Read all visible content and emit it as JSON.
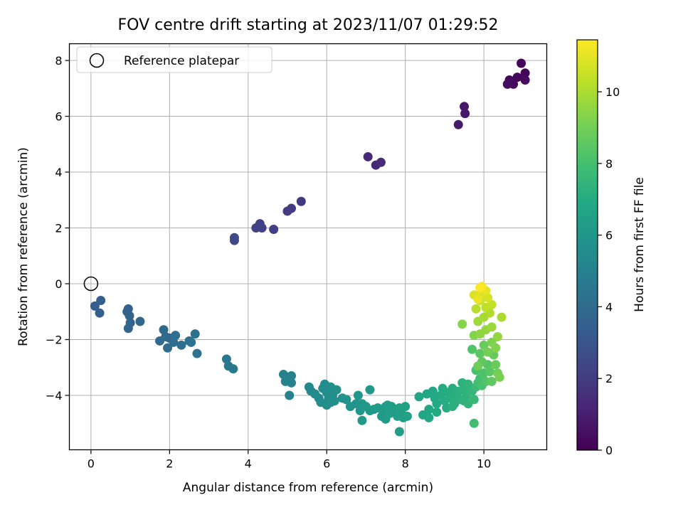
{
  "chart_data": {
    "type": "scatter",
    "title": "FOV centre drift starting at 2023/11/07 01:29:52",
    "xlabel": "Angular distance from reference (arcmin)",
    "ylabel": "Rotation from reference (arcmin)",
    "xlim": [
      -0.55,
      11.6
    ],
    "ylim": [
      -5.95,
      8.6
    ],
    "xticks": [
      0,
      2,
      4,
      6,
      8,
      10
    ],
    "yticks": [
      -4,
      -2,
      0,
      2,
      4,
      6,
      8
    ],
    "grid": true,
    "legend": {
      "placement": "upper-left",
      "entries": [
        "Reference platepar"
      ]
    },
    "reference_point": {
      "x": 0,
      "y": 0
    },
    "colorbar": {
      "label": "Hours from first FF file",
      "colormap": "viridis",
      "range": [
        0,
        11.45
      ],
      "ticks": [
        0,
        2,
        4,
        6,
        8,
        10
      ]
    },
    "points": [
      {
        "x": 10.95,
        "y": 7.9,
        "c": 0.1
      },
      {
        "x": 11.05,
        "y": 7.55,
        "c": 0.15
      },
      {
        "x": 10.85,
        "y": 7.4,
        "c": 0.2
      },
      {
        "x": 10.65,
        "y": 7.3,
        "c": 0.25
      },
      {
        "x": 10.75,
        "y": 7.15,
        "c": 0.3
      },
      {
        "x": 11.05,
        "y": 7.3,
        "c": 0.35
      },
      {
        "x": 10.6,
        "y": 7.15,
        "c": 0.4
      },
      {
        "x": 9.5,
        "y": 6.35,
        "c": 0.7
      },
      {
        "x": 9.52,
        "y": 6.1,
        "c": 0.75
      },
      {
        "x": 9.35,
        "y": 5.7,
        "c": 0.8
      },
      {
        "x": 7.05,
        "y": 4.55,
        "c": 1.25
      },
      {
        "x": 7.25,
        "y": 4.25,
        "c": 1.3
      },
      {
        "x": 7.38,
        "y": 4.35,
        "c": 1.35
      },
      {
        "x": 5.35,
        "y": 2.95,
        "c": 1.9
      },
      {
        "x": 5.1,
        "y": 2.7,
        "c": 1.95
      },
      {
        "x": 5.0,
        "y": 2.6,
        "c": 2.0
      },
      {
        "x": 4.65,
        "y": 1.95,
        "c": 2.1
      },
      {
        "x": 4.3,
        "y": 2.15,
        "c": 2.15
      },
      {
        "x": 4.2,
        "y": 2.0,
        "c": 2.2
      },
      {
        "x": 4.35,
        "y": 2.0,
        "c": 2.25
      },
      {
        "x": 3.65,
        "y": 1.65,
        "c": 2.45
      },
      {
        "x": 3.65,
        "y": 1.55,
        "c": 2.5
      },
      {
        "x": 0.1,
        "y": -0.8,
        "c": 3.4
      },
      {
        "x": 0.25,
        "y": -0.6,
        "c": 3.45
      },
      {
        "x": 0.22,
        "y": -1.05,
        "c": 3.5
      },
      {
        "x": 0.95,
        "y": -0.9,
        "c": 3.6
      },
      {
        "x": 0.92,
        "y": -1.0,
        "c": 3.62
      },
      {
        "x": 0.98,
        "y": -1.15,
        "c": 3.65
      },
      {
        "x": 1.0,
        "y": -1.4,
        "c": 3.7
      },
      {
        "x": 0.95,
        "y": -1.6,
        "c": 3.75
      },
      {
        "x": 1.25,
        "y": -1.35,
        "c": 3.8
      },
      {
        "x": 1.85,
        "y": -1.65,
        "c": 3.9
      },
      {
        "x": 1.75,
        "y": -2.05,
        "c": 3.95
      },
      {
        "x": 1.9,
        "y": -1.9,
        "c": 4.0
      },
      {
        "x": 2.0,
        "y": -1.95,
        "c": 4.0
      },
      {
        "x": 1.95,
        "y": -2.3,
        "c": 4.05
      },
      {
        "x": 2.15,
        "y": -1.85,
        "c": 4.1
      },
      {
        "x": 2.1,
        "y": -2.1,
        "c": 4.1
      },
      {
        "x": 2.3,
        "y": -2.2,
        "c": 4.15
      },
      {
        "x": 2.5,
        "y": -2.05,
        "c": 4.2
      },
      {
        "x": 2.65,
        "y": -1.8,
        "c": 4.25
      },
      {
        "x": 2.7,
        "y": -2.5,
        "c": 4.3
      },
      {
        "x": 2.55,
        "y": -2.1,
        "c": 4.3
      },
      {
        "x": 3.45,
        "y": -2.7,
        "c": 4.5
      },
      {
        "x": 3.5,
        "y": -2.95,
        "c": 4.55
      },
      {
        "x": 3.62,
        "y": -3.05,
        "c": 4.6
      },
      {
        "x": 4.9,
        "y": -3.25,
        "c": 4.95
      },
      {
        "x": 5.0,
        "y": -3.35,
        "c": 5.0
      },
      {
        "x": 5.1,
        "y": -3.3,
        "c": 5.0
      },
      {
        "x": 4.95,
        "y": -3.5,
        "c": 5.05
      },
      {
        "x": 5.1,
        "y": -3.55,
        "c": 5.05
      },
      {
        "x": 5.05,
        "y": -4.0,
        "c": 5.1
      },
      {
        "x": 5.55,
        "y": -3.7,
        "c": 5.3
      },
      {
        "x": 5.6,
        "y": -3.85,
        "c": 5.35
      },
      {
        "x": 5.7,
        "y": -3.95,
        "c": 5.4
      },
      {
        "x": 5.8,
        "y": -4.1,
        "c": 5.45
      },
      {
        "x": 5.85,
        "y": -4.25,
        "c": 5.5
      },
      {
        "x": 5.9,
        "y": -3.75,
        "c": 5.5
      },
      {
        "x": 5.95,
        "y": -3.6,
        "c": 5.55
      },
      {
        "x": 6.0,
        "y": -3.9,
        "c": 5.55
      },
      {
        "x": 6.05,
        "y": -4.1,
        "c": 5.6
      },
      {
        "x": 6.0,
        "y": -4.35,
        "c": 5.6
      },
      {
        "x": 6.1,
        "y": -3.7,
        "c": 5.65
      },
      {
        "x": 6.15,
        "y": -4.0,
        "c": 5.65
      },
      {
        "x": 6.2,
        "y": -4.2,
        "c": 5.7
      },
      {
        "x": 6.25,
        "y": -3.8,
        "c": 5.7
      },
      {
        "x": 6.1,
        "y": -4.25,
        "c": 5.7
      },
      {
        "x": 6.4,
        "y": -4.1,
        "c": 5.8
      },
      {
        "x": 6.5,
        "y": -4.15,
        "c": 5.85
      },
      {
        "x": 6.6,
        "y": -4.4,
        "c": 5.9
      },
      {
        "x": 6.75,
        "y": -4.3,
        "c": 5.9
      },
      {
        "x": 6.8,
        "y": -4.0,
        "c": 5.95
      },
      {
        "x": 6.85,
        "y": -4.55,
        "c": 6.0
      },
      {
        "x": 6.9,
        "y": -4.3,
        "c": 6.0
      },
      {
        "x": 7.0,
        "y": -4.4,
        "c": 6.05
      },
      {
        "x": 7.1,
        "y": -3.8,
        "c": 6.05
      },
      {
        "x": 7.1,
        "y": -4.55,
        "c": 6.1
      },
      {
        "x": 7.2,
        "y": -4.5,
        "c": 6.1
      },
      {
        "x": 6.9,
        "y": -4.9,
        "c": 6.15
      },
      {
        "x": 7.3,
        "y": -4.45,
        "c": 6.15
      },
      {
        "x": 7.45,
        "y": -4.6,
        "c": 6.2
      },
      {
        "x": 7.5,
        "y": -4.4,
        "c": 6.2
      },
      {
        "x": 7.55,
        "y": -4.5,
        "c": 6.25
      },
      {
        "x": 7.5,
        "y": -4.85,
        "c": 6.25
      },
      {
        "x": 7.6,
        "y": -4.65,
        "c": 6.3
      },
      {
        "x": 7.65,
        "y": -4.4,
        "c": 6.3
      },
      {
        "x": 7.75,
        "y": -4.55,
        "c": 6.35
      },
      {
        "x": 7.8,
        "y": -4.75,
        "c": 6.35
      },
      {
        "x": 7.85,
        "y": -4.45,
        "c": 6.4
      },
      {
        "x": 7.9,
        "y": -4.6,
        "c": 6.4
      },
      {
        "x": 7.95,
        "y": -4.8,
        "c": 6.45
      },
      {
        "x": 7.85,
        "y": -5.3,
        "c": 6.45
      },
      {
        "x": 8.0,
        "y": -4.4,
        "c": 6.5
      },
      {
        "x": 8.05,
        "y": -4.75,
        "c": 6.5
      },
      {
        "x": 7.55,
        "y": -4.35,
        "c": 6.3
      },
      {
        "x": 7.4,
        "y": -4.75,
        "c": 6.22
      },
      {
        "x": 8.35,
        "y": -4.05,
        "c": 6.7
      },
      {
        "x": 8.45,
        "y": -4.7,
        "c": 6.75
      },
      {
        "x": 8.55,
        "y": -3.95,
        "c": 6.8
      },
      {
        "x": 8.6,
        "y": -4.5,
        "c": 6.8
      },
      {
        "x": 8.6,
        "y": -4.8,
        "c": 6.85
      },
      {
        "x": 8.7,
        "y": -3.85,
        "c": 6.85
      },
      {
        "x": 8.75,
        "y": -4.1,
        "c": 6.9
      },
      {
        "x": 8.8,
        "y": -4.3,
        "c": 6.9
      },
      {
        "x": 8.8,
        "y": -4.6,
        "c": 6.95
      },
      {
        "x": 8.9,
        "y": -4.0,
        "c": 6.95
      },
      {
        "x": 8.95,
        "y": -3.75,
        "c": 7.0
      },
      {
        "x": 9.0,
        "y": -4.2,
        "c": 7.0
      },
      {
        "x": 9.05,
        "y": -4.45,
        "c": 7.05
      },
      {
        "x": 9.1,
        "y": -3.9,
        "c": 7.05
      },
      {
        "x": 9.15,
        "y": -4.1,
        "c": 7.1
      },
      {
        "x": 9.2,
        "y": -3.75,
        "c": 7.1
      },
      {
        "x": 9.25,
        "y": -4.3,
        "c": 7.15
      },
      {
        "x": 9.3,
        "y": -4.0,
        "c": 7.15
      },
      {
        "x": 9.2,
        "y": -4.4,
        "c": 7.2
      },
      {
        "x": 9.35,
        "y": -3.85,
        "c": 7.2
      },
      {
        "x": 9.4,
        "y": -4.15,
        "c": 7.25
      },
      {
        "x": 9.45,
        "y": -3.55,
        "c": 7.3
      },
      {
        "x": 9.5,
        "y": -3.75,
        "c": 7.3
      },
      {
        "x": 9.5,
        "y": -4.2,
        "c": 7.35
      },
      {
        "x": 9.55,
        "y": -4.0,
        "c": 7.35
      },
      {
        "x": 9.6,
        "y": -3.6,
        "c": 7.4
      },
      {
        "x": 9.6,
        "y": -4.3,
        "c": 7.45
      },
      {
        "x": 9.7,
        "y": -3.85,
        "c": 7.5
      },
      {
        "x": 9.75,
        "y": -4.15,
        "c": 7.6
      },
      {
        "x": 9.8,
        "y": -3.7,
        "c": 7.7
      },
      {
        "x": 9.75,
        "y": -5.0,
        "c": 7.9
      },
      {
        "x": 9.85,
        "y": -3.55,
        "c": 7.9
      },
      {
        "x": 9.9,
        "y": -3.4,
        "c": 8.0
      },
      {
        "x": 9.8,
        "y": -3.1,
        "c": 8.1
      },
      {
        "x": 9.95,
        "y": -3.65,
        "c": 8.1
      },
      {
        "x": 10.0,
        "y": -3.2,
        "c": 8.2
      },
      {
        "x": 9.7,
        "y": -2.35,
        "c": 8.3
      },
      {
        "x": 10.05,
        "y": -3.5,
        "c": 8.3
      },
      {
        "x": 10.1,
        "y": -2.9,
        "c": 8.4
      },
      {
        "x": 9.9,
        "y": -2.5,
        "c": 8.5
      },
      {
        "x": 10.15,
        "y": -3.15,
        "c": 8.5
      },
      {
        "x": 10.2,
        "y": -3.5,
        "c": 8.6
      },
      {
        "x": 9.95,
        "y": -2.8,
        "c": 8.6
      },
      {
        "x": 10.25,
        "y": -2.55,
        "c": 8.7
      },
      {
        "x": 10.0,
        "y": -2.2,
        "c": 8.8
      },
      {
        "x": 10.3,
        "y": -2.9,
        "c": 8.8
      },
      {
        "x": 9.85,
        "y": -2.95,
        "c": 8.9
      },
      {
        "x": 10.1,
        "y": -2.45,
        "c": 9.0
      },
      {
        "x": 10.35,
        "y": -3.2,
        "c": 9.0
      },
      {
        "x": 10.4,
        "y": -3.35,
        "c": 9.1
      },
      {
        "x": 10.2,
        "y": -2.1,
        "c": 9.2
      },
      {
        "x": 9.75,
        "y": -1.85,
        "c": 9.3
      },
      {
        "x": 10.3,
        "y": -2.3,
        "c": 9.3
      },
      {
        "x": 9.45,
        "y": -1.45,
        "c": 9.4
      },
      {
        "x": 9.9,
        "y": -1.8,
        "c": 9.5
      },
      {
        "x": 10.05,
        "y": -1.65,
        "c": 9.6
      },
      {
        "x": 10.35,
        "y": -1.9,
        "c": 9.6
      },
      {
        "x": 10.2,
        "y": -1.55,
        "c": 9.7
      },
      {
        "x": 9.85,
        "y": -1.35,
        "c": 9.8
      },
      {
        "x": 10.0,
        "y": -1.2,
        "c": 9.9
      },
      {
        "x": 10.45,
        "y": -1.2,
        "c": 10.0
      },
      {
        "x": 10.15,
        "y": -1.05,
        "c": 10.1
      },
      {
        "x": 9.8,
        "y": -0.9,
        "c": 10.2
      },
      {
        "x": 10.05,
        "y": -0.85,
        "c": 10.3
      },
      {
        "x": 10.2,
        "y": -0.75,
        "c": 10.4
      },
      {
        "x": 9.9,
        "y": -0.6,
        "c": 10.5
      },
      {
        "x": 10.1,
        "y": -0.5,
        "c": 10.7
      },
      {
        "x": 9.75,
        "y": -0.4,
        "c": 10.8
      },
      {
        "x": 9.95,
        "y": -0.35,
        "c": 10.9
      },
      {
        "x": 10.05,
        "y": -0.25,
        "c": 11.0
      },
      {
        "x": 9.85,
        "y": -0.55,
        "c": 11.1
      },
      {
        "x": 9.95,
        "y": -0.1,
        "c": 11.3
      },
      {
        "x": 9.9,
        "y": -0.15,
        "c": 11.4
      }
    ]
  }
}
